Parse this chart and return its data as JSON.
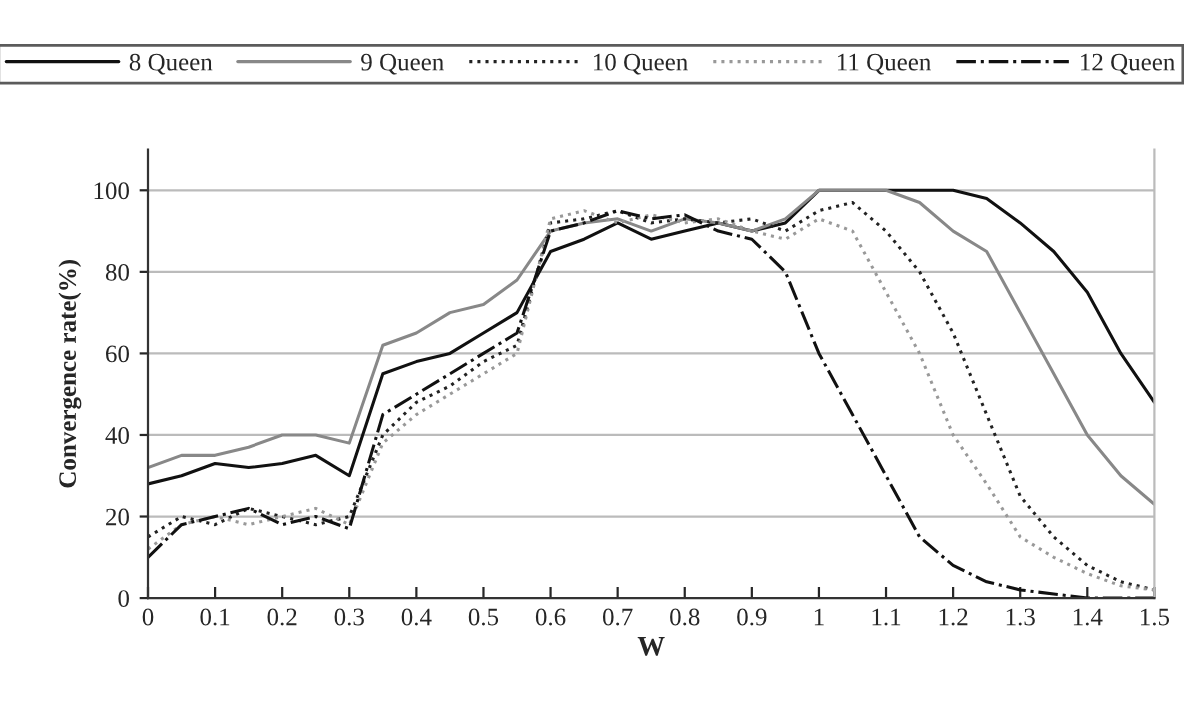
{
  "chart_data": {
    "type": "line",
    "xlabel": "W",
    "ylabel": "Convergence rate(%)",
    "x": [
      0,
      0.05,
      0.1,
      0.15,
      0.2,
      0.25,
      0.3,
      0.35,
      0.4,
      0.45,
      0.5,
      0.55,
      0.6,
      0.65,
      0.7,
      0.75,
      0.8,
      0.85,
      0.9,
      0.95,
      1,
      1.05,
      1.1,
      1.15,
      1.2,
      1.25,
      1.3,
      1.35,
      1.4,
      1.45,
      1.5
    ],
    "series": [
      {
        "name": "8 Queen",
        "color": "#111111",
        "line_style": "solid",
        "values": [
          28,
          30,
          33,
          32,
          33,
          35,
          30,
          55,
          58,
          60,
          65,
          70,
          85,
          88,
          92,
          88,
          90,
          92,
          90,
          92,
          100,
          100,
          100,
          100,
          100,
          98,
          92,
          85,
          75,
          60,
          48
        ]
      },
      {
        "name": "9 Queen",
        "color": "#888888",
        "line_style": "solid",
        "values": [
          32,
          35,
          35,
          37,
          40,
          40,
          38,
          62,
          65,
          70,
          72,
          78,
          90,
          92,
          93,
          90,
          93,
          92,
          90,
          93,
          100,
          100,
          100,
          97,
          90,
          85,
          70,
          55,
          40,
          30,
          23
        ]
      },
      {
        "name": "10 Queen",
        "color": "#222222",
        "line_style": "dotted",
        "values": [
          15,
          20,
          18,
          22,
          20,
          18,
          20,
          40,
          48,
          52,
          58,
          62,
          92,
          93,
          95,
          92,
          93,
          92,
          93,
          90,
          95,
          97,
          90,
          80,
          65,
          45,
          25,
          15,
          8,
          4,
          2
        ]
      },
      {
        "name": "11 Queen",
        "color": "#999999",
        "line_style": "dotted",
        "values": [
          12,
          18,
          20,
          18,
          20,
          22,
          18,
          38,
          45,
          50,
          55,
          60,
          93,
          95,
          92,
          94,
          92,
          93,
          90,
          88,
          93,
          90,
          75,
          60,
          40,
          28,
          15,
          10,
          6,
          3,
          2
        ]
      },
      {
        "name": "12 Queen",
        "color": "#111111",
        "line_style": "dashdot",
        "values": [
          10,
          18,
          20,
          22,
          18,
          20,
          17,
          45,
          50,
          55,
          60,
          65,
          90,
          92,
          95,
          93,
          94,
          90,
          88,
          80,
          60,
          45,
          30,
          15,
          8,
          4,
          2,
          1,
          0,
          0,
          0
        ]
      }
    ],
    "xlim": [
      0,
      1.5
    ],
    "xticks": [
      0,
      0.1,
      0.2,
      0.3,
      0.4,
      0.5,
      0.6,
      0.7,
      0.8,
      0.9,
      1,
      1.1,
      1.2,
      1.3,
      1.4,
      1.5
    ],
    "ylim": [
      0,
      110
    ],
    "yticks": [
      0,
      20,
      40,
      60,
      80,
      100
    ],
    "grid": "y",
    "legend": "top",
    "marker": "none"
  }
}
